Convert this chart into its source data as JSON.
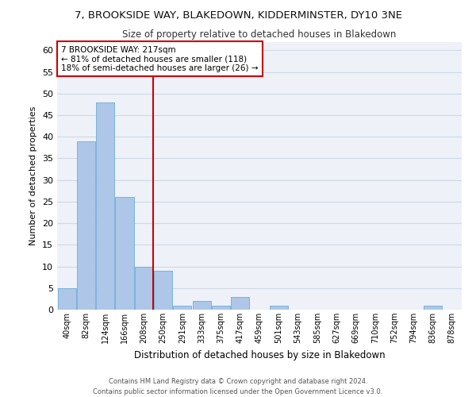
{
  "title1": "7, BROOKSIDE WAY, BLAKEDOWN, KIDDERMINSTER, DY10 3NE",
  "title2": "Size of property relative to detached houses in Blakedown",
  "xlabel": "Distribution of detached houses by size in Blakedown",
  "ylabel": "Number of detached properties",
  "bar_labels": [
    "40sqm",
    "82sqm",
    "124sqm",
    "166sqm",
    "208sqm",
    "250sqm",
    "291sqm",
    "333sqm",
    "375sqm",
    "417sqm",
    "459sqm",
    "501sqm",
    "543sqm",
    "585sqm",
    "627sqm",
    "669sqm",
    "710sqm",
    "752sqm",
    "794sqm",
    "836sqm",
    "878sqm"
  ],
  "bar_values": [
    5,
    39,
    48,
    26,
    10,
    9,
    1,
    2,
    1,
    3,
    0,
    1,
    0,
    0,
    0,
    0,
    0,
    0,
    0,
    1,
    0
  ],
  "bar_color": "#aec6e8",
  "bar_edgecolor": "#6baed6",
  "vline_x": 4.5,
  "vline_color": "#cc0000",
  "annotation_text": "7 BROOKSIDE WAY: 217sqm\n← 81% of detached houses are smaller (118)\n18% of semi-detached houses are larger (26) →",
  "annotation_box_color": "#ffffff",
  "annotation_box_edgecolor": "#cc0000",
  "ylim": [
    0,
    62
  ],
  "yticks": [
    0,
    5,
    10,
    15,
    20,
    25,
    30,
    35,
    40,
    45,
    50,
    55,
    60
  ],
  "grid_color": "#d0d8e4",
  "bg_color": "#eef2f8",
  "footer_text": "Contains HM Land Registry data © Crown copyright and database right 2024.\nContains public sector information licensed under the Open Government Licence v3.0."
}
